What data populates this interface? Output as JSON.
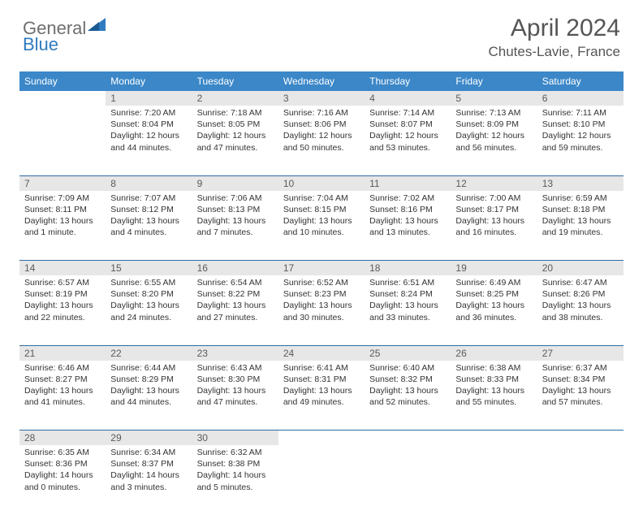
{
  "brand": {
    "part1": "General",
    "part2": "Blue"
  },
  "title": {
    "month": "April 2024",
    "location": "Chutes-Lavie, France"
  },
  "colors": {
    "header_bg": "#3b87c8",
    "row_border": "#2f6ca3",
    "daynum_bg": "#e7e7e7",
    "text": "#333333",
    "brand_gray": "#6e6e6e",
    "brand_blue": "#2f7bbf"
  },
  "weekdays": [
    "Sunday",
    "Monday",
    "Tuesday",
    "Wednesday",
    "Thursday",
    "Friday",
    "Saturday"
  ],
  "weeks": [
    [
      null,
      {
        "n": "1",
        "sr": "7:20 AM",
        "ss": "8:04 PM",
        "dl": "12 hours and 44 minutes."
      },
      {
        "n": "2",
        "sr": "7:18 AM",
        "ss": "8:05 PM",
        "dl": "12 hours and 47 minutes."
      },
      {
        "n": "3",
        "sr": "7:16 AM",
        "ss": "8:06 PM",
        "dl": "12 hours and 50 minutes."
      },
      {
        "n": "4",
        "sr": "7:14 AM",
        "ss": "8:07 PM",
        "dl": "12 hours and 53 minutes."
      },
      {
        "n": "5",
        "sr": "7:13 AM",
        "ss": "8:09 PM",
        "dl": "12 hours and 56 minutes."
      },
      {
        "n": "6",
        "sr": "7:11 AM",
        "ss": "8:10 PM",
        "dl": "12 hours and 59 minutes."
      }
    ],
    [
      {
        "n": "7",
        "sr": "7:09 AM",
        "ss": "8:11 PM",
        "dl": "13 hours and 1 minute."
      },
      {
        "n": "8",
        "sr": "7:07 AM",
        "ss": "8:12 PM",
        "dl": "13 hours and 4 minutes."
      },
      {
        "n": "9",
        "sr": "7:06 AM",
        "ss": "8:13 PM",
        "dl": "13 hours and 7 minutes."
      },
      {
        "n": "10",
        "sr": "7:04 AM",
        "ss": "8:15 PM",
        "dl": "13 hours and 10 minutes."
      },
      {
        "n": "11",
        "sr": "7:02 AM",
        "ss": "8:16 PM",
        "dl": "13 hours and 13 minutes."
      },
      {
        "n": "12",
        "sr": "7:00 AM",
        "ss": "8:17 PM",
        "dl": "13 hours and 16 minutes."
      },
      {
        "n": "13",
        "sr": "6:59 AM",
        "ss": "8:18 PM",
        "dl": "13 hours and 19 minutes."
      }
    ],
    [
      {
        "n": "14",
        "sr": "6:57 AM",
        "ss": "8:19 PM",
        "dl": "13 hours and 22 minutes."
      },
      {
        "n": "15",
        "sr": "6:55 AM",
        "ss": "8:20 PM",
        "dl": "13 hours and 24 minutes."
      },
      {
        "n": "16",
        "sr": "6:54 AM",
        "ss": "8:22 PM",
        "dl": "13 hours and 27 minutes."
      },
      {
        "n": "17",
        "sr": "6:52 AM",
        "ss": "8:23 PM",
        "dl": "13 hours and 30 minutes."
      },
      {
        "n": "18",
        "sr": "6:51 AM",
        "ss": "8:24 PM",
        "dl": "13 hours and 33 minutes."
      },
      {
        "n": "19",
        "sr": "6:49 AM",
        "ss": "8:25 PM",
        "dl": "13 hours and 36 minutes."
      },
      {
        "n": "20",
        "sr": "6:47 AM",
        "ss": "8:26 PM",
        "dl": "13 hours and 38 minutes."
      }
    ],
    [
      {
        "n": "21",
        "sr": "6:46 AM",
        "ss": "8:27 PM",
        "dl": "13 hours and 41 minutes."
      },
      {
        "n": "22",
        "sr": "6:44 AM",
        "ss": "8:29 PM",
        "dl": "13 hours and 44 minutes."
      },
      {
        "n": "23",
        "sr": "6:43 AM",
        "ss": "8:30 PM",
        "dl": "13 hours and 47 minutes."
      },
      {
        "n": "24",
        "sr": "6:41 AM",
        "ss": "8:31 PM",
        "dl": "13 hours and 49 minutes."
      },
      {
        "n": "25",
        "sr": "6:40 AM",
        "ss": "8:32 PM",
        "dl": "13 hours and 52 minutes."
      },
      {
        "n": "26",
        "sr": "6:38 AM",
        "ss": "8:33 PM",
        "dl": "13 hours and 55 minutes."
      },
      {
        "n": "27",
        "sr": "6:37 AM",
        "ss": "8:34 PM",
        "dl": "13 hours and 57 minutes."
      }
    ],
    [
      {
        "n": "28",
        "sr": "6:35 AM",
        "ss": "8:36 PM",
        "dl": "14 hours and 0 minutes."
      },
      {
        "n": "29",
        "sr": "6:34 AM",
        "ss": "8:37 PM",
        "dl": "14 hours and 3 minutes."
      },
      {
        "n": "30",
        "sr": "6:32 AM",
        "ss": "8:38 PM",
        "dl": "14 hours and 5 minutes."
      },
      null,
      null,
      null,
      null
    ]
  ],
  "labels": {
    "sunrise": "Sunrise:",
    "sunset": "Sunset:",
    "daylight": "Daylight:"
  }
}
